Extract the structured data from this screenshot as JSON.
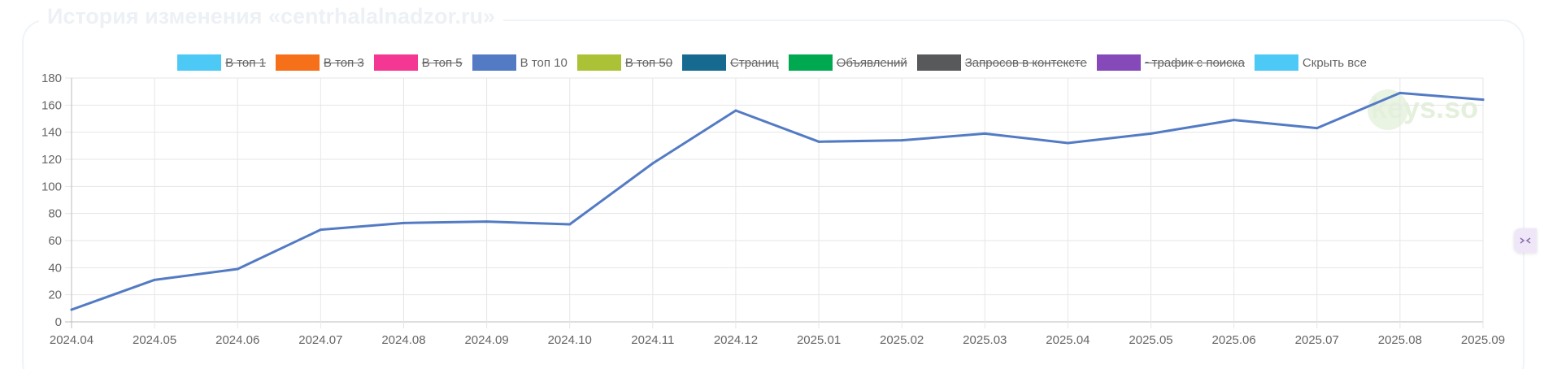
{
  "panel": {
    "title": "История изменения «centrhalalnadzor.ru»"
  },
  "legend": [
    {
      "label": "В топ 1",
      "color": "#4dc9f6",
      "hidden": true
    },
    {
      "label": "В топ 3",
      "color": "#f67019",
      "hidden": true
    },
    {
      "label": "В топ 5",
      "color": "#f53794",
      "hidden": true
    },
    {
      "label": "В топ 10",
      "color": "#537bc4",
      "hidden": false
    },
    {
      "label": "В топ 50",
      "color": "#acc236",
      "hidden": true
    },
    {
      "label": "Страниц",
      "color": "#166a8f",
      "hidden": true
    },
    {
      "label": "Объявлений",
      "color": "#00a950",
      "hidden": true
    },
    {
      "label": "Запросов в контексте",
      "color": "#58595b",
      "hidden": true
    },
    {
      "label": "~трафик с поиска",
      "color": "#8549ba",
      "hidden": true
    },
    {
      "label": "Скрыть все",
      "color": "#4dc9f6",
      "hidden": false
    }
  ],
  "watermark": "keys.so",
  "side_button": {
    "icon": "collapse-arrows-icon"
  },
  "chart_data": {
    "type": "line",
    "categories": [
      "2024.04",
      "2024.05",
      "2024.06",
      "2024.07",
      "2024.08",
      "2024.09",
      "2024.10",
      "2024.11",
      "2024.12",
      "2025.01",
      "2025.02",
      "2025.03",
      "2025.04",
      "2025.05",
      "2025.06",
      "2025.07",
      "2025.08",
      "2025.09"
    ],
    "series": [
      {
        "name": "В топ 10",
        "color": "#537bc4",
        "values": [
          9,
          31,
          39,
          68,
          73,
          74,
          72,
          117,
          156,
          133,
          134,
          139,
          132,
          139,
          149,
          143,
          169,
          164
        ]
      }
    ],
    "ylim": [
      0,
      180
    ],
    "yticks": [
      0,
      20,
      40,
      60,
      80,
      100,
      120,
      140,
      160,
      180
    ],
    "grid": true,
    "legend_position": "top-center"
  }
}
